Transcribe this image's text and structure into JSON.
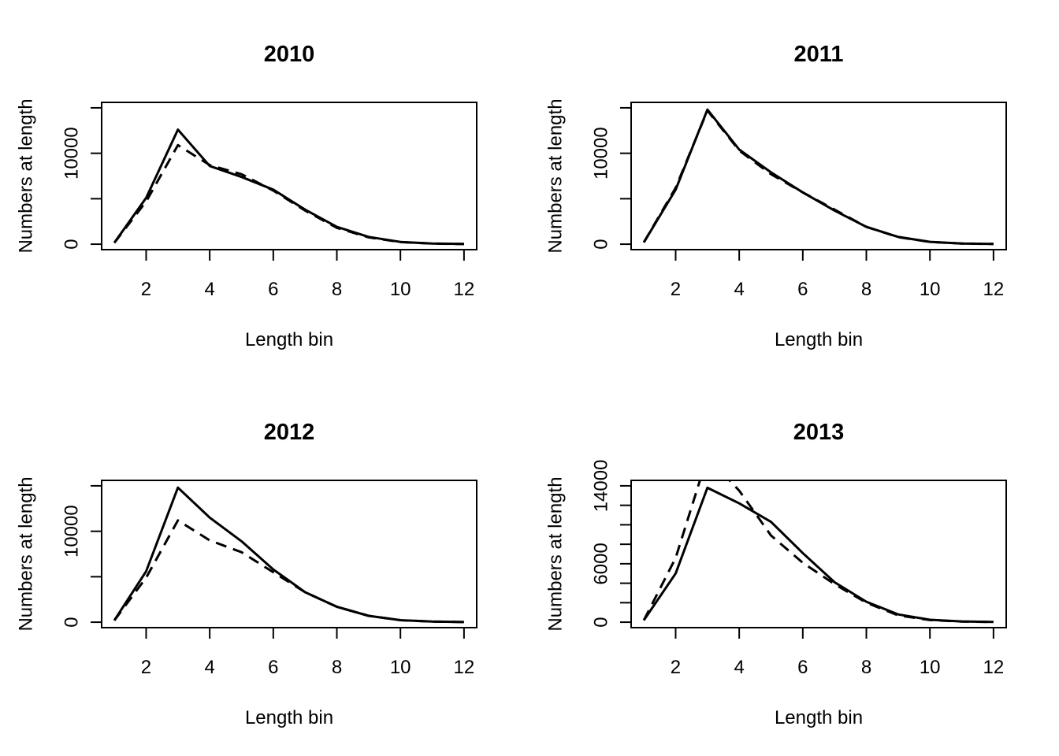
{
  "chart_data": [
    {
      "type": "line",
      "title": "2010",
      "xlabel": "Length bin",
      "ylabel": "Numbers at length",
      "xlim": [
        0.6,
        12.4
      ],
      "ylim": [
        -600,
        15600
      ],
      "xticks": [
        2,
        4,
        6,
        8,
        10,
        12
      ],
      "yticks": [
        0,
        5000,
        10000,
        15000
      ],
      "ytick_labels": [
        "0",
        "",
        "10000",
        ""
      ],
      "x": [
        1,
        2,
        3,
        4,
        5,
        6,
        7,
        8,
        9,
        10,
        11,
        12
      ],
      "series": [
        {
          "style": "solid",
          "color": "#000000",
          "values": [
            150,
            5100,
            12600,
            8600,
            7400,
            6000,
            3800,
            1900,
            800,
            250,
            80,
            20
          ]
        },
        {
          "style": "dashed",
          "color": "#000000",
          "values": [
            150,
            4700,
            10900,
            8700,
            7700,
            5900,
            3700,
            1800,
            750,
            230,
            70,
            15
          ]
        }
      ]
    },
    {
      "type": "line",
      "title": "2011",
      "xlabel": "Length bin",
      "ylabel": "Numbers at length",
      "xlim": [
        0.6,
        12.4
      ],
      "ylim": [
        -600,
        15600
      ],
      "xticks": [
        2,
        4,
        6,
        8,
        10,
        12
      ],
      "yticks": [
        0,
        5000,
        10000,
        15000
      ],
      "ytick_labels": [
        "0",
        "",
        "10000",
        ""
      ],
      "x": [
        1,
        2,
        3,
        4,
        5,
        6,
        7,
        8,
        9,
        10,
        11,
        12
      ],
      "series": [
        {
          "style": "solid",
          "color": "#000000",
          "values": [
            200,
            6000,
            14800,
            10400,
            7900,
            5700,
            3700,
            1900,
            800,
            260,
            80,
            20
          ]
        },
        {
          "style": "dashed",
          "color": "#000000",
          "values": [
            200,
            6200,
            14700,
            10300,
            7700,
            5700,
            3800,
            1900,
            780,
            250,
            75,
            20
          ]
        }
      ]
    },
    {
      "type": "line",
      "title": "2012",
      "xlabel": "Length bin",
      "ylabel": "Numbers at length",
      "xlim": [
        0.6,
        12.4
      ],
      "ylim": [
        -600,
        15600
      ],
      "xticks": [
        2,
        4,
        6,
        8,
        10,
        12
      ],
      "yticks": [
        0,
        5000,
        10000,
        15000
      ],
      "ytick_labels": [
        "0",
        "",
        "10000",
        ""
      ],
      "x": [
        1,
        2,
        3,
        4,
        5,
        6,
        7,
        8,
        9,
        10,
        11,
        12
      ],
      "series": [
        {
          "style": "solid",
          "color": "#000000",
          "values": [
            200,
            5600,
            14800,
            11500,
            8900,
            5800,
            3300,
            1700,
            700,
            220,
            70,
            15
          ]
        },
        {
          "style": "dashed",
          "color": "#000000",
          "values": [
            200,
            4900,
            11200,
            9000,
            7700,
            5500,
            3300,
            1700,
            700,
            220,
            70,
            15
          ]
        }
      ]
    },
    {
      "type": "line",
      "title": "2013",
      "xlabel": "Length bin",
      "ylabel": "Numbers at length",
      "xlim": [
        0.6,
        12.4
      ],
      "ylim": [
        -560,
        14560
      ],
      "xticks": [
        2,
        4,
        6,
        8,
        10,
        12
      ],
      "yticks": [
        0,
        2000,
        4000,
        6000,
        8000,
        10000,
        12000,
        14000
      ],
      "ytick_labels": [
        "0",
        "",
        "",
        "6000",
        "",
        "",
        "",
        "14000"
      ],
      "x": [
        1,
        2,
        3,
        4,
        5,
        6,
        7,
        8,
        9,
        10,
        11,
        12
      ],
      "series": [
        {
          "style": "solid",
          "color": "#000000",
          "values": [
            200,
            5000,
            13800,
            12200,
            10300,
            7100,
            4100,
            2100,
            800,
            250,
            80,
            20
          ]
        },
        {
          "style": "dashed",
          "color": "#000000",
          "values": [
            200,
            6600,
            17000,
            13500,
            8900,
            6100,
            3900,
            2000,
            700,
            220,
            70,
            15
          ]
        }
      ]
    }
  ]
}
